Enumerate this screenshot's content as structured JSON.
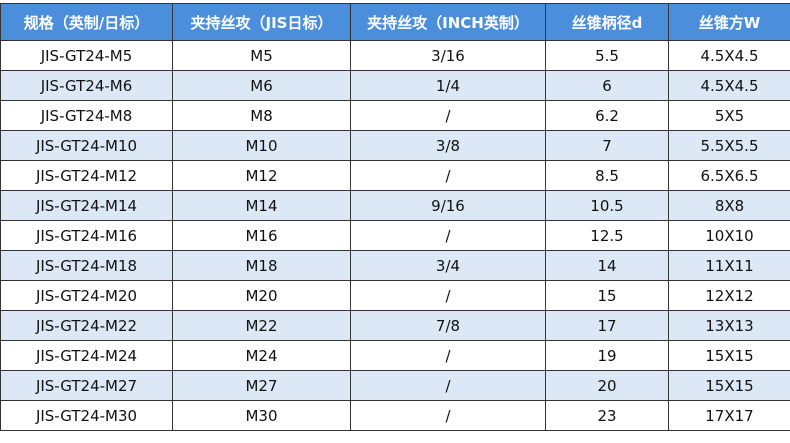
{
  "table": {
    "header": [
      "规格（英制/日标）",
      "夹持丝攻（JIS日标）",
      "夹持丝攻（INCH英制）",
      "丝锥柄径d",
      "丝锥方W"
    ],
    "rows": [
      [
        "JIS-GT24-M5",
        "M5",
        "3/16",
        "5.5",
        "4.5X4.5"
      ],
      [
        "JIS-GT24-M6",
        "M6",
        "1/4",
        "6",
        "4.5X4.5"
      ],
      [
        "JIS-GT24-M8",
        "M8",
        "/",
        "6.2",
        "5X5"
      ],
      [
        "JIS-GT24-M10",
        "M10",
        "3/8",
        "7",
        "5.5X5.5"
      ],
      [
        "JIS-GT24-M12",
        "M12",
        "/",
        "8.5",
        "6.5X6.5"
      ],
      [
        "JIS-GT24-M14",
        "M14",
        "9/16",
        "10.5",
        "8X8"
      ],
      [
        "JIS-GT24-M16",
        "M16",
        "/",
        "12.5",
        "10X10"
      ],
      [
        "JIS-GT24-M18",
        "M18",
        "3/4",
        "14",
        "11X11"
      ],
      [
        "JIS-GT24-M20",
        "M20",
        "/",
        "15",
        "12X12"
      ],
      [
        "JIS-GT24-M22",
        "M22",
        "7/8",
        "17",
        "13X13"
      ],
      [
        "JIS-GT24-M24",
        "M24",
        "/",
        "19",
        "15X15"
      ],
      [
        "JIS-GT24-M27",
        "M27",
        "/",
        "20",
        "15X15"
      ],
      [
        "JIS-GT24-M30",
        "M30",
        "/",
        "23",
        "17X17"
      ]
    ]
  }
}
